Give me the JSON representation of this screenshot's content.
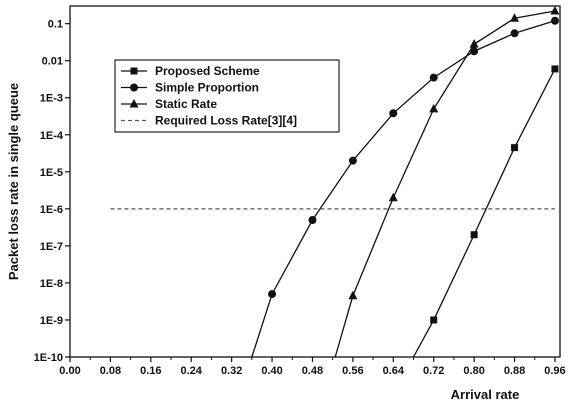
{
  "chart_data": {
    "type": "line",
    "title": "",
    "xlabel": "Arrival rate",
    "ylabel": "Packet loss rate in single queue",
    "x_scale": "linear",
    "y_scale": "log",
    "xlim": [
      0,
      0.97
    ],
    "ylim": [
      1e-10,
      0.3
    ],
    "x_ticks": [
      0,
      0.08,
      0.16,
      0.24,
      0.32,
      0.4,
      0.48,
      0.56,
      0.64,
      0.72,
      0.8,
      0.88,
      0.96
    ],
    "x_tick_labels": [
      "0.00",
      "0.08",
      "0.16",
      "0.24",
      "0.32",
      "0.40",
      "0.48",
      "0.56",
      "0.64",
      "0.72",
      "0.80",
      "0.88",
      "0.96"
    ],
    "y_ticks": [
      1e-10,
      1e-09,
      1e-08,
      1e-07,
      1e-06,
      1e-05,
      0.0001,
      0.001,
      0.01,
      0.1
    ],
    "y_tick_labels": [
      "1E-10",
      "1E-9",
      "1E-8",
      "1E-7",
      "1E-6",
      "1E-5",
      "1E-4",
      "1E-3",
      "0.01",
      "0.1"
    ],
    "grid": false,
    "legend_position": "top-left",
    "series": [
      {
        "name": "Proposed Scheme",
        "marker": "square",
        "color": "#111111",
        "x": [
          0.68,
          0.72,
          0.8,
          0.88,
          0.96
        ],
        "y": [
          1e-10,
          1e-09,
          2e-07,
          4.5e-05,
          0.006
        ]
      },
      {
        "name": "Simple Proportion",
        "marker": "circle",
        "color": "#111111",
        "x": [
          0.36,
          0.4,
          0.48,
          0.56,
          0.64,
          0.72,
          0.8,
          0.88,
          0.96
        ],
        "y": [
          1e-10,
          5e-09,
          5e-07,
          2e-05,
          0.00038,
          0.0035,
          0.018,
          0.055,
          0.12
        ]
      },
      {
        "name": "Static Rate",
        "marker": "triangle",
        "color": "#111111",
        "x": [
          0.525,
          0.56,
          0.64,
          0.72,
          0.8,
          0.88,
          0.96
        ],
        "y": [
          1e-10,
          4.5e-09,
          2e-06,
          0.0005,
          0.028,
          0.14,
          0.22
        ]
      },
      {
        "name": "Required Loss Rate[3][4]",
        "style": "dashed",
        "color": "#555555",
        "x": [
          0.08,
          0.96
        ],
        "y": [
          1e-06,
          1e-06
        ]
      }
    ]
  }
}
